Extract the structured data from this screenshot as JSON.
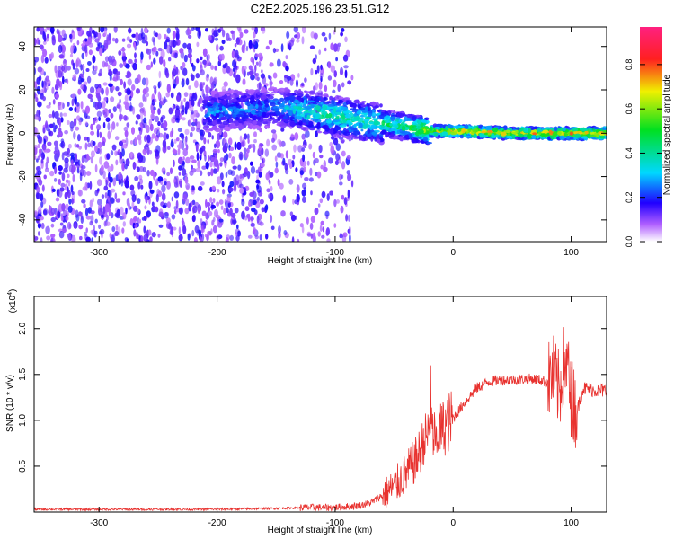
{
  "title": "C2E2.2025.196.23.51.G12",
  "colors": {
    "snr_line": "#e8322f",
    "frame": "#000000",
    "background": "#ffffff"
  },
  "chart_data": [
    {
      "type": "heatmap",
      "xlabel": "Height of straight line (km)",
      "ylabel": "Frequency (Hz)",
      "xlim": [
        -355,
        130
      ],
      "ylim": [
        -50,
        49
      ],
      "x_ticks": [
        "-300",
        "-200",
        "-100",
        "0",
        "100"
      ],
      "y_ticks": [
        "40",
        "20",
        "0",
        "-20",
        "-40"
      ],
      "colorbar": {
        "label": "Normalized spectral amplitude",
        "range": [
          0,
          0.97
        ],
        "ticks": [
          "0.0",
          "0.2",
          "0.4",
          "0.6",
          "0.8"
        ],
        "colormap": "rainbow (white-violet-blue-cyan-green-yellow-red-magenta)"
      },
      "description_points": [
        {
          "x": -290,
          "y": 0,
          "intensity": 0.1
        },
        {
          "x": -205,
          "y": 10,
          "intensity": 0.3
        },
        {
          "x": -150,
          "y": 12,
          "intensity": 0.3
        },
        {
          "x": -120,
          "y": 10,
          "intensity": 0.45
        },
        {
          "x": -80,
          "y": 6,
          "intensity": 0.45
        },
        {
          "x": -40,
          "y": 3,
          "intensity": 0.5
        },
        {
          "x": -20,
          "y": 1,
          "intensity": 0.7
        },
        {
          "x": 0,
          "y": 1,
          "intensity": 0.85
        },
        {
          "x": 50,
          "y": 0,
          "intensity": 0.8
        },
        {
          "x": 100,
          "y": 0,
          "intensity": 0.85
        },
        {
          "x": 125,
          "y": 0,
          "intensity": 0.9
        }
      ]
    },
    {
      "type": "line",
      "xlabel": "Height of straight line (km)",
      "ylabel": "SNR (10 * v/v)",
      "y_multiplier": "(x10^4)",
      "y_multiplier_base": "(x10",
      "y_multiplier_exp": "4",
      "xlim": [
        -355,
        130
      ],
      "ylim": [
        0,
        2.35
      ],
      "x_ticks": [
        "-300",
        "-200",
        "-100",
        "0",
        "100"
      ],
      "y_ticks": [
        "2.0",
        "1.5",
        "1.0",
        "0.5"
      ],
      "series": [
        {
          "x": [
            -355,
            -300,
            -250,
            -200,
            -150,
            -120,
            -100,
            -80,
            -70,
            -60,
            -50,
            -40,
            -30,
            -25,
            -20,
            -15,
            -10,
            0,
            10,
            20,
            30,
            40,
            50,
            60,
            70,
            80,
            85,
            90,
            95,
            100,
            105,
            110,
            120,
            130
          ],
          "y": [
            0.03,
            0.03,
            0.03,
            0.03,
            0.04,
            0.05,
            0.05,
            0.07,
            0.1,
            0.18,
            0.28,
            0.42,
            0.6,
            0.78,
            0.88,
            0.82,
            0.9,
            1.02,
            1.2,
            1.35,
            1.42,
            1.44,
            1.44,
            1.45,
            1.45,
            1.42,
            1.5,
            1.3,
            1.7,
            1.25,
            1.1,
            1.35,
            1.33,
            1.32
          ]
        }
      ]
    }
  ]
}
